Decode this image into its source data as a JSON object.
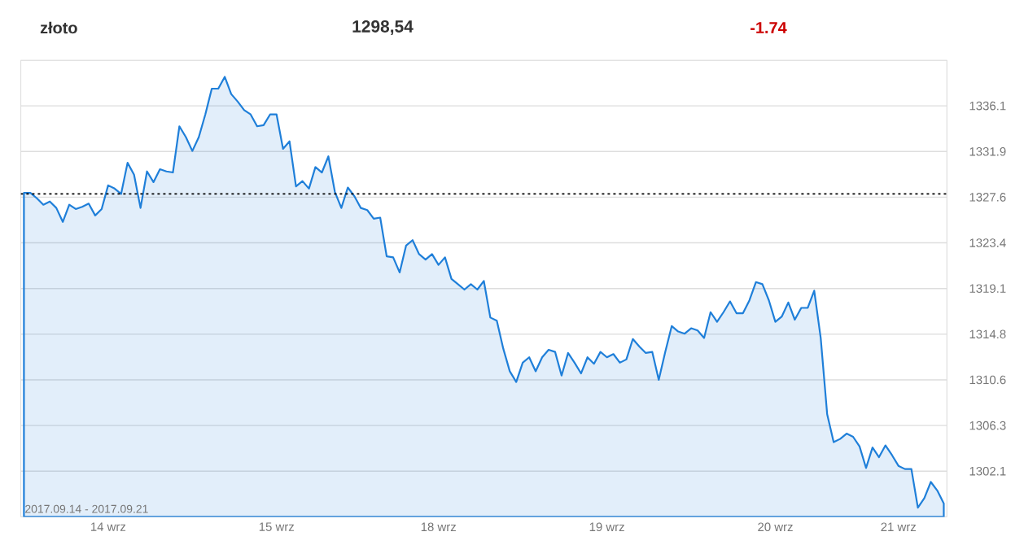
{
  "chart_data": {
    "type": "area",
    "title": "złoto",
    "subtitle": "1298,54",
    "annotations": [
      "-1.74",
      "2017.09.14 - 2017.09.21"
    ],
    "categories": [
      null,
      null,
      null,
      null,
      null,
      null,
      null,
      null,
      null,
      null,
      null,
      null,
      null,
      "14 wrz",
      null,
      null,
      null,
      null,
      null,
      null,
      null,
      null,
      null,
      null,
      null,
      null,
      null,
      null,
      null,
      null,
      null,
      null,
      null,
      null,
      null,
      null,
      null,
      null,
      null,
      "15 wrz",
      null,
      null,
      null,
      null,
      null,
      null,
      null,
      null,
      null,
      null,
      null,
      null,
      null,
      null,
      null,
      null,
      null,
      null,
      null,
      null,
      null,
      null,
      null,
      null,
      "18 wrz",
      null,
      null,
      null,
      null,
      null,
      null,
      null,
      null,
      null,
      null,
      null,
      null,
      null,
      null,
      null,
      null,
      null,
      null,
      null,
      null,
      null,
      null,
      null,
      null,
      null,
      "19 wrz",
      null,
      null,
      null,
      null,
      null,
      null,
      null,
      null,
      null,
      null,
      null,
      null,
      null,
      null,
      null,
      null,
      null,
      null,
      null,
      null,
      null,
      null,
      null,
      null,
      null,
      "20 wrz",
      null,
      null,
      null,
      null,
      null,
      null,
      null,
      null,
      null,
      null,
      null,
      null,
      null,
      null,
      null,
      null,
      null,
      null,
      "21 wrz",
      null,
      null,
      null,
      null,
      null,
      null,
      null
    ],
    "series": [
      {
        "color": "#1f7fd9",
        "values": [
          1328.0,
          1328.0,
          1327.5,
          1326.9,
          1327.2,
          1326.6,
          1325.3,
          1326.9,
          1326.5,
          1326.7,
          1327.0,
          1325.9,
          1326.5,
          1328.7,
          1328.4,
          1327.9,
          1330.8,
          1329.7,
          1326.6,
          1330.0,
          1329.0,
          1330.2,
          1330.0,
          1329.9,
          1334.2,
          1333.2,
          1331.9,
          1333.2,
          1335.3,
          1337.7,
          1337.7,
          1338.8,
          1337.2,
          1336.5,
          1335.7,
          1335.3,
          1334.2,
          1334.3,
          1335.3,
          1335.3,
          1332.1,
          1332.8,
          1328.6,
          1329.1,
          1328.4,
          1330.4,
          1329.9,
          1331.4,
          1328.1,
          1326.6,
          1328.5,
          1327.7,
          1326.6,
          1326.4,
          1325.6,
          1325.7,
          1322.1,
          1322.0,
          1320.6,
          1323.1,
          1323.6,
          1322.3,
          1321.8,
          1322.3,
          1321.3,
          1322.0,
          1320.0,
          1319.5,
          1319.0,
          1319.5,
          1319.0,
          1319.8,
          1316.4,
          1316.1,
          1313.5,
          1311.4,
          1310.4,
          1312.2,
          1312.7,
          1311.4,
          1312.7,
          1313.4,
          1313.2,
          1311.0,
          1313.1,
          1312.2,
          1311.2,
          1312.7,
          1312.1,
          1313.2,
          1312.7,
          1313.0,
          1312.2,
          1312.5,
          1314.4,
          1313.7,
          1313.1,
          1313.2,
          1310.6,
          1313.2,
          1315.6,
          1315.1,
          1314.9,
          1315.4,
          1315.2,
          1314.5,
          1316.9,
          1316.0,
          1316.9,
          1317.9,
          1316.8,
          1316.8,
          1318.0,
          1319.7,
          1319.5,
          1318.0,
          1316.0,
          1316.5,
          1317.8,
          1316.2,
          1317.3,
          1317.3,
          1318.9,
          1314.5,
          1307.4,
          1304.8,
          1305.1,
          1305.6,
          1305.3,
          1304.4,
          1302.4,
          1304.3,
          1303.4,
          1304.5,
          1303.6,
          1302.6,
          1302.3,
          1302.3,
          1298.7,
          1299.6,
          1301.1,
          1300.3,
          1299.1
        ]
      }
    ],
    "ylim": [
      1297.85,
      1340.35
    ],
    "yticks": [
      {
        "value": 1302.1,
        "label": "1302.1"
      },
      {
        "value": 1306.35,
        "label": "1306.3"
      },
      {
        "value": 1310.6,
        "label": "1310.6"
      },
      {
        "value": 1314.85,
        "label": "1314.8"
      },
      {
        "value": 1319.1,
        "label": "1319.1"
      },
      {
        "value": 1323.35,
        "label": "1323.4"
      },
      {
        "value": 1327.6,
        "label": "1327.6"
      },
      {
        "value": 1331.85,
        "label": "1331.9"
      },
      {
        "value": 1336.1,
        "label": "1336.1"
      }
    ],
    "ref_lines": [
      {
        "axis": "y",
        "value": 1327.9,
        "color": "#000000",
        "line_style": "dotted"
      }
    ],
    "grid": "y"
  }
}
